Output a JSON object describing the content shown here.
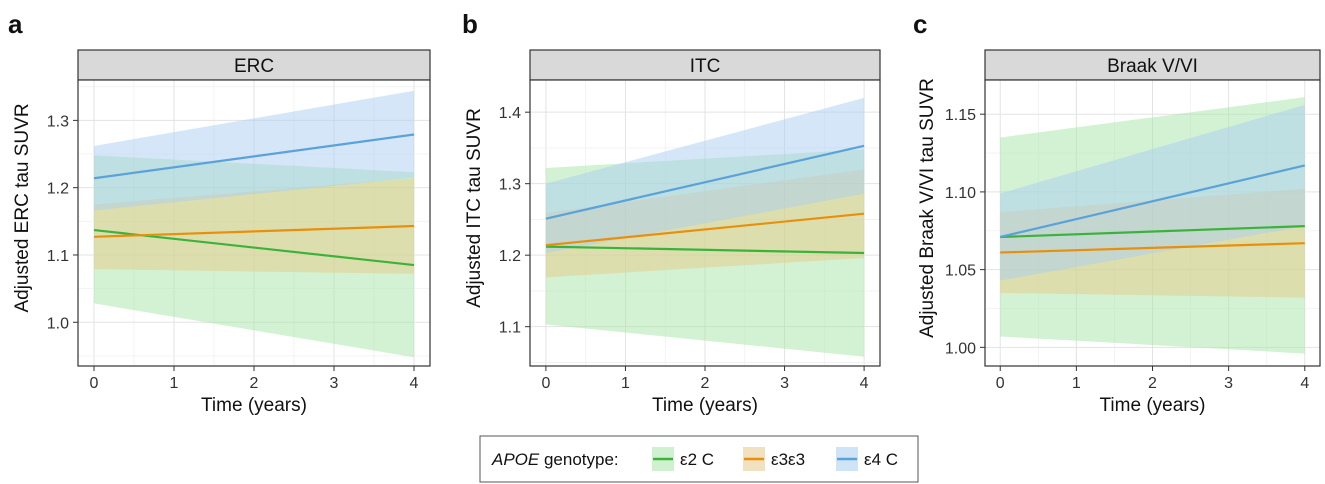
{
  "legend": {
    "title_italic": "APOE",
    "title_rest": " genotype:",
    "items": [
      {
        "label": "ε2 C",
        "color": "#3bb33b",
        "fill": "#a8e6a8"
      },
      {
        "label": "ε3ε3",
        "color": "#e8900c",
        "fill": "#e8c98a"
      },
      {
        "label": "ε4 C",
        "color": "#5aa2d8",
        "fill": "#a9cdf2"
      }
    ]
  },
  "chart_data": [
    {
      "type": "line",
      "panel_label": "a",
      "strip_title": "ERC",
      "xlabel": "Time (years)",
      "ylabel": "Adjusted ERC tau SUVR",
      "xlim": [
        -0.2,
        4.2
      ],
      "ylim": [
        0.935,
        1.36
      ],
      "xticks": [
        0,
        1,
        2,
        3,
        4
      ],
      "yticks": [
        1.0,
        1.1,
        1.2,
        1.3
      ],
      "ytick_labels": [
        "1.0",
        "1.1",
        "1.2",
        "1.3"
      ],
      "grid": true,
      "x": [
        0,
        4
      ],
      "series": [
        {
          "name": "ε2 C",
          "values": [
            1.137,
            1.085
          ],
          "lower": [
            1.028,
            0.948
          ],
          "upper": [
            1.248,
            1.223
          ]
        },
        {
          "name": "ε3ε3",
          "values": [
            1.127,
            1.143
          ],
          "lower": [
            1.079,
            1.072
          ],
          "upper": [
            1.175,
            1.214
          ]
        },
        {
          "name": "ε4 C",
          "values": [
            1.214,
            1.279
          ],
          "lower": [
            1.166,
            1.215
          ],
          "upper": [
            1.262,
            1.344
          ]
        }
      ]
    },
    {
      "type": "line",
      "panel_label": "b",
      "strip_title": "ITC",
      "xlabel": "Time (years)",
      "ylabel": "Adjusted ITC tau SUVR",
      "xlim": [
        -0.2,
        4.2
      ],
      "ylim": [
        1.045,
        1.445
      ],
      "xticks": [
        0,
        1,
        2,
        3,
        4
      ],
      "yticks": [
        1.1,
        1.2,
        1.3,
        1.4
      ],
      "ytick_labels": [
        "1.1",
        "1.2",
        "1.3",
        "1.4"
      ],
      "grid": true,
      "x": [
        0,
        4
      ],
      "series": [
        {
          "name": "ε2 C",
          "values": [
            1.212,
            1.203
          ],
          "lower": [
            1.103,
            1.058
          ],
          "upper": [
            1.322,
            1.348
          ]
        },
        {
          "name": "ε3ε3",
          "values": [
            1.214,
            1.258
          ],
          "lower": [
            1.169,
            1.196
          ],
          "upper": [
            1.259,
            1.32
          ]
        },
        {
          "name": "ε4 C",
          "values": [
            1.251,
            1.353
          ],
          "lower": [
            1.203,
            1.286
          ],
          "upper": [
            1.3,
            1.42
          ]
        }
      ]
    },
    {
      "type": "line",
      "panel_label": "c",
      "strip_title": "Braak V/VI",
      "xlabel": "Time (years)",
      "ylabel": "Adjusted Braak V/VI tau SUVR",
      "xlim": [
        -0.2,
        4.2
      ],
      "ylim": [
        0.988,
        1.172
      ],
      "xticks": [
        0,
        1,
        2,
        3,
        4
      ],
      "yticks": [
        1.0,
        1.05,
        1.1,
        1.15
      ],
      "ytick_labels": [
        "1.00",
        "1.05",
        "1.10",
        "1.15"
      ],
      "grid": true,
      "x": [
        0,
        4
      ],
      "series": [
        {
          "name": "ε2 C",
          "values": [
            1.071,
            1.078
          ],
          "lower": [
            1.007,
            0.996
          ],
          "upper": [
            1.135,
            1.161
          ]
        },
        {
          "name": "ε3ε3",
          "values": [
            1.061,
            1.067
          ],
          "lower": [
            1.035,
            1.032
          ],
          "upper": [
            1.087,
            1.102
          ]
        },
        {
          "name": "ε4 C",
          "values": [
            1.071,
            1.117
          ],
          "lower": [
            1.043,
            1.078
          ],
          "upper": [
            1.099,
            1.156
          ]
        }
      ]
    }
  ]
}
